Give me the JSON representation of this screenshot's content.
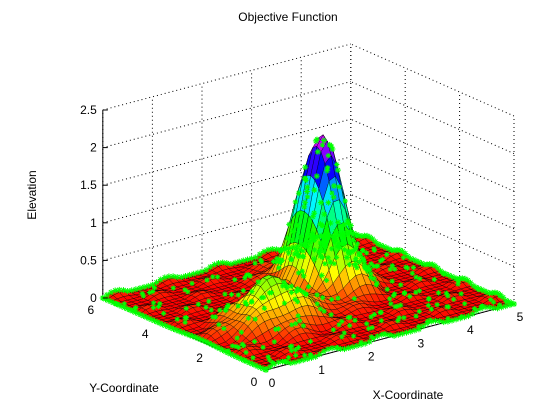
{
  "chart_data": {
    "type": "surface",
    "title": "Objective Function",
    "xlabel": "X-Coordinate",
    "ylabel": "Y-Coordinate",
    "zlabel": "Elevation",
    "xlim": [
      0,
      5
    ],
    "ylim": [
      0,
      6
    ],
    "zlim": [
      0,
      2.5
    ],
    "x_ticks": [
      "0",
      "1",
      "2",
      "3",
      "4",
      "5"
    ],
    "y_ticks": [
      "0",
      "2",
      "4",
      "6"
    ],
    "z_ticks": [
      "0",
      "0.5",
      "1",
      "1.5",
      "2",
      "2.5"
    ],
    "grid": true,
    "colormap": [
      "#ff0000",
      "#ffff00",
      "#00ff00",
      "#00ffff",
      "#0000ff",
      "#ff00ff"
    ],
    "point_color": "#00ff00",
    "point_marker": "asterisk",
    "surface_peaks": [
      {
        "x": 3.1,
        "y": 3.6,
        "z": 2.0
      },
      {
        "x": 1.4,
        "y": 2.3,
        "z": 0.6
      }
    ]
  }
}
